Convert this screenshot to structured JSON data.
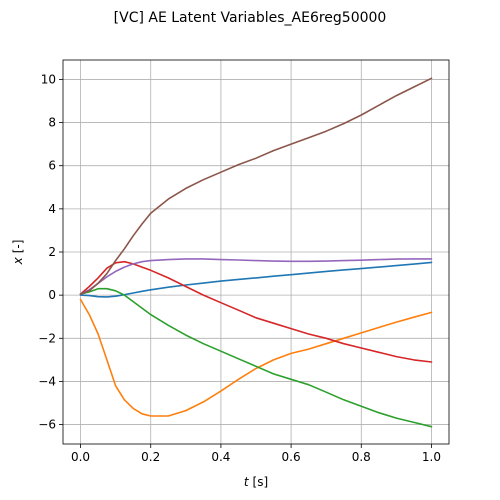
{
  "chart_data": {
    "type": "line",
    "title": "[VC] AE Latent Variables_AE6reg50000",
    "xlabel_var": "t",
    "xlabel_unit": "[s]",
    "ylabel_var": "x",
    "ylabel_unit": "[-]",
    "xlim": [
      -0.05,
      1.05
    ],
    "ylim": [
      -6.9,
      10.9
    ],
    "xticks": [
      0.0,
      0.2,
      0.4,
      0.6,
      0.8,
      1.0
    ],
    "xtick_labels": [
      "0.0",
      "0.2",
      "0.4",
      "0.6",
      "0.8",
      "1.0"
    ],
    "yticks": [
      -6,
      -4,
      -2,
      0,
      2,
      4,
      6,
      8,
      10
    ],
    "ytick_labels": [
      "−6",
      "−4",
      "−2",
      "0",
      "2",
      "4",
      "6",
      "8",
      "10"
    ],
    "grid": true,
    "legend": "none",
    "x": [
      0.0,
      0.025,
      0.05,
      0.075,
      0.1,
      0.125,
      0.15,
      0.175,
      0.2,
      0.25,
      0.3,
      0.35,
      0.4,
      0.45,
      0.5,
      0.55,
      0.6,
      0.65,
      0.7,
      0.75,
      0.8,
      0.85,
      0.9,
      0.95,
      1.0
    ],
    "series": [
      {
        "color": "#1f77b4",
        "values": [
          0.0,
          -0.02,
          -0.07,
          -0.08,
          -0.05,
          0.02,
          0.1,
          0.18,
          0.25,
          0.37,
          0.47,
          0.56,
          0.65,
          0.73,
          0.8,
          0.88,
          0.95,
          1.02,
          1.1,
          1.17,
          1.23,
          1.3,
          1.37,
          1.44,
          1.52
        ]
      },
      {
        "color": "#ff7f0e",
        "values": [
          -0.2,
          -0.9,
          -1.8,
          -3.0,
          -4.2,
          -4.85,
          -5.25,
          -5.5,
          -5.6,
          -5.6,
          -5.35,
          -4.95,
          -4.45,
          -3.9,
          -3.4,
          -3.0,
          -2.7,
          -2.5,
          -2.25,
          -2.0,
          -1.75,
          -1.5,
          -1.25,
          -1.02,
          -0.8
        ]
      },
      {
        "color": "#2ca02c",
        "values": [
          0.05,
          0.15,
          0.3,
          0.3,
          0.2,
          0.0,
          -0.3,
          -0.6,
          -0.9,
          -1.4,
          -1.85,
          -2.25,
          -2.6,
          -2.95,
          -3.3,
          -3.65,
          -3.9,
          -4.15,
          -4.5,
          -4.85,
          -5.15,
          -5.45,
          -5.7,
          -5.9,
          -6.1
        ]
      },
      {
        "color": "#d62728",
        "values": [
          0.05,
          0.4,
          0.8,
          1.25,
          1.5,
          1.55,
          1.45,
          1.3,
          1.15,
          0.8,
          0.4,
          0.0,
          -0.35,
          -0.7,
          -1.05,
          -1.3,
          -1.55,
          -1.8,
          -2.0,
          -2.25,
          -2.45,
          -2.65,
          -2.85,
          -3.0,
          -3.1
        ]
      },
      {
        "color": "#9467bd",
        "values": [
          0.05,
          0.25,
          0.55,
          0.85,
          1.1,
          1.3,
          1.45,
          1.55,
          1.6,
          1.65,
          1.68,
          1.68,
          1.65,
          1.63,
          1.6,
          1.58,
          1.57,
          1.57,
          1.58,
          1.6,
          1.62,
          1.65,
          1.67,
          1.68,
          1.68
        ]
      },
      {
        "color": "#8c564b",
        "values": [
          0.05,
          0.2,
          0.55,
          1.0,
          1.6,
          2.15,
          2.75,
          3.3,
          3.8,
          4.45,
          4.95,
          5.35,
          5.7,
          6.05,
          6.35,
          6.7,
          7.0,
          7.3,
          7.6,
          7.95,
          8.35,
          8.8,
          9.25,
          9.65,
          10.05
        ]
      }
    ]
  }
}
